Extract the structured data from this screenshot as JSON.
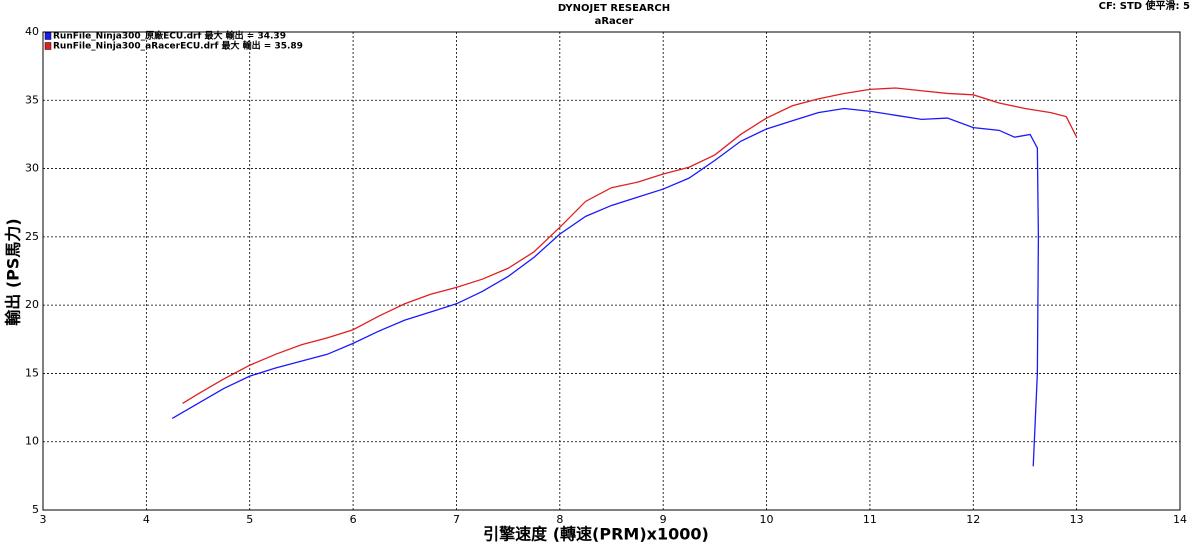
{
  "chart_data": {
    "type": "line",
    "title": "DYNOJET RESEARCH",
    "subtitle": "aRacer",
    "corner_note": "CF: STD  使平滑: 5",
    "x_label": "引擎速度 (轉速(PRM)x1000)",
    "y_label": "輸出 (PS馬力)",
    "xlim": [
      3,
      14
    ],
    "xticks": [
      3,
      4,
      5,
      6,
      7,
      8,
      9,
      10,
      11,
      12,
      13,
      14
    ],
    "ylim": [
      5,
      40
    ],
    "yticks": [
      5,
      10,
      15,
      20,
      25,
      30,
      35,
      40
    ],
    "grid": true,
    "legend": "top-left",
    "series": [
      {
        "name": "RunFile_Ninja300_原廠ECU.drf 最大 輸出 = 34.39",
        "color": "#1a1aff",
        "x": [
          4.25,
          4.5,
          4.75,
          5.0,
          5.25,
          5.5,
          5.75,
          6.0,
          6.25,
          6.5,
          6.75,
          7.0,
          7.25,
          7.5,
          7.75,
          8.0,
          8.25,
          8.5,
          8.75,
          9.0,
          9.25,
          9.5,
          9.75,
          10.0,
          10.25,
          10.5,
          10.75,
          11.0,
          11.25,
          11.5,
          11.75,
          12.0,
          12.25,
          12.4,
          12.55,
          12.62,
          12.63,
          12.62,
          12.58
        ],
        "values": [
          11.7,
          12.8,
          13.9,
          14.8,
          15.4,
          15.9,
          16.4,
          17.2,
          18.1,
          18.9,
          19.5,
          20.1,
          21.0,
          22.1,
          23.5,
          25.2,
          26.5,
          27.3,
          27.9,
          28.5,
          29.3,
          30.6,
          32.0,
          32.9,
          33.5,
          34.1,
          34.4,
          34.2,
          33.9,
          33.6,
          33.7,
          33.0,
          32.8,
          32.3,
          32.5,
          31.5,
          25,
          15,
          8.2
        ]
      },
      {
        "name": "RunFile_Ninja300_aRacerECU.drf 最大 輸出 = 35.89",
        "color": "#e02020",
        "x": [
          4.35,
          4.5,
          4.75,
          5.0,
          5.25,
          5.5,
          5.75,
          6.0,
          6.25,
          6.5,
          6.75,
          7.0,
          7.25,
          7.5,
          7.75,
          8.0,
          8.25,
          8.5,
          8.75,
          9.0,
          9.25,
          9.5,
          9.75,
          10.0,
          10.25,
          10.5,
          10.75,
          11.0,
          11.25,
          11.5,
          11.75,
          12.0,
          12.25,
          12.5,
          12.75,
          12.9,
          13.0
        ],
        "values": [
          12.8,
          13.5,
          14.6,
          15.6,
          16.4,
          17.1,
          17.6,
          18.2,
          19.2,
          20.1,
          20.8,
          21.3,
          21.9,
          22.7,
          23.9,
          25.7,
          27.6,
          28.6,
          29.0,
          29.6,
          30.1,
          31.0,
          32.5,
          33.7,
          34.6,
          35.1,
          35.5,
          35.8,
          35.9,
          35.7,
          35.5,
          35.4,
          34.8,
          34.4,
          34.1,
          33.8,
          32.3
        ]
      }
    ]
  }
}
